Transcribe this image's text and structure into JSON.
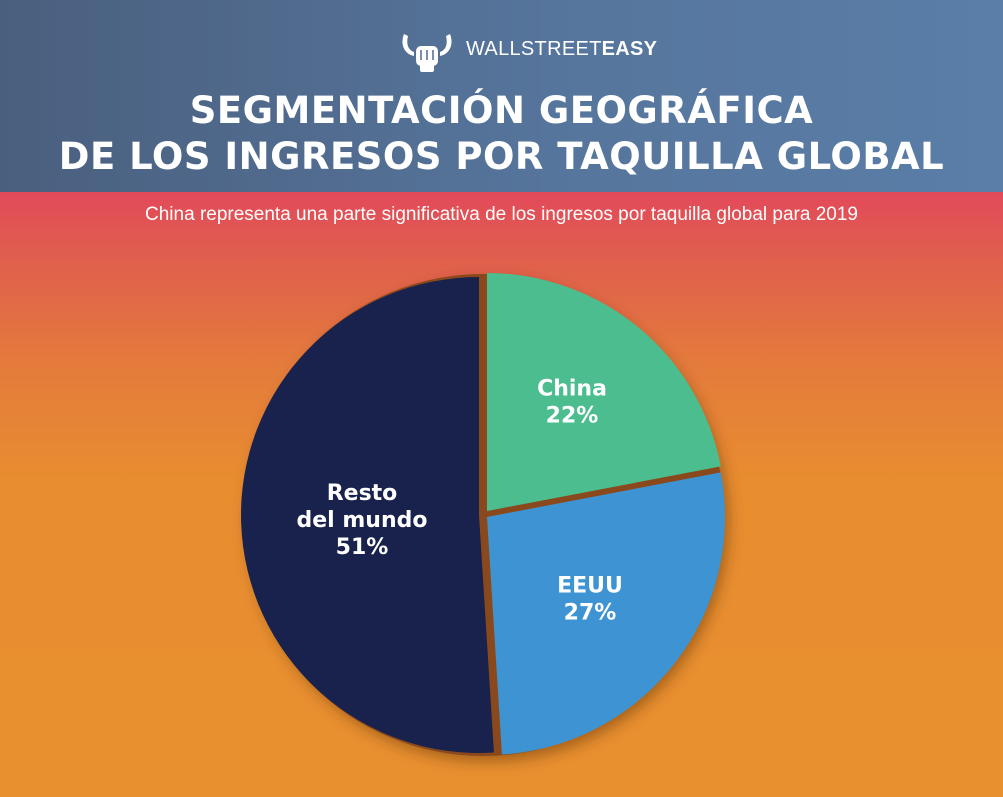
{
  "brand": {
    "name_light": "WALLSTREET",
    "name_bold": "EASY",
    "logo_icon": "bull-fist-icon"
  },
  "title_lines": [
    "SEGMENTACIÓN GEOGRÁFICA",
    "DE LOS INGRESOS POR TAQUILLA GLOBAL"
  ],
  "subtitle": "China representa una parte significativa de los ingresos por taquilla global para 2019",
  "colors": {
    "header": "#50698f",
    "background_top": "#e2495a",
    "background_bottom": "#e89030",
    "separator": "#8a4a1f"
  },
  "chart_data": {
    "type": "pie",
    "title": "SEGMENTACIÓN GEOGRÁFICA DE LOS INGRESOS POR TAQUILLA GLOBAL",
    "slices": [
      {
        "label": "China",
        "value": 22,
        "value_label": "22%",
        "color": "#4bbd8f"
      },
      {
        "label": "EEUU",
        "value": 27,
        "value_label": "27%",
        "color": "#3e94d2"
      },
      {
        "label_lines": [
          "Resto",
          "del mundo"
        ],
        "label": "Resto del mundo",
        "value": 51,
        "value_label": "51%",
        "color": "#18224d"
      }
    ]
  }
}
